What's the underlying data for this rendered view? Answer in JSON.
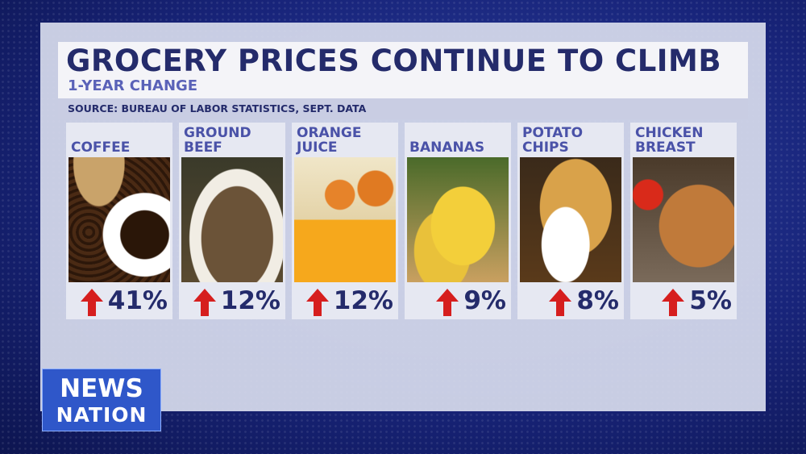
{
  "header": {
    "title": "GROCERY PRICES CONTINUE TO CLIMB",
    "subtitle": "1-YEAR CHANGE",
    "source": "SOURCE: BUREAU OF LABOR STATISTICS, SEPT. DATA"
  },
  "items": [
    {
      "name": [
        "COFFEE"
      ],
      "change": "41%"
    },
    {
      "name": [
        "GROUND",
        "BEEF"
      ],
      "change": "12%"
    },
    {
      "name": [
        "ORANGE",
        "JUICE"
      ],
      "change": "12%"
    },
    {
      "name": [
        "BANANAS"
      ],
      "change": "9%"
    },
    {
      "name": [
        "POTATO",
        "CHIPS"
      ],
      "change": "8%"
    },
    {
      "name": [
        "CHICKEN",
        "BREAST"
      ],
      "change": "5%"
    }
  ],
  "logo": [
    "NEWS",
    "NATION"
  ]
}
